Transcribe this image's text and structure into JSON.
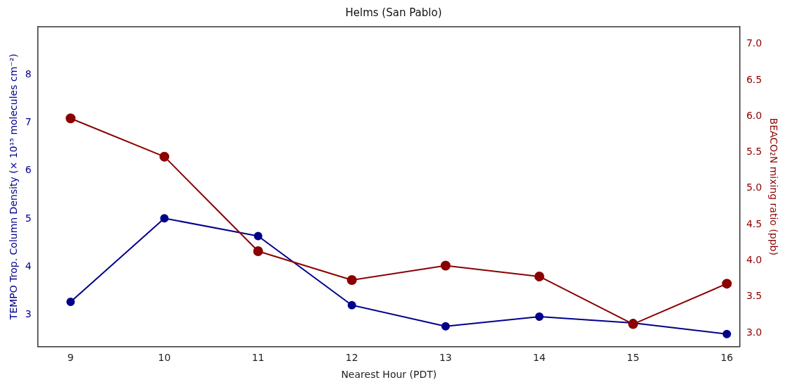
{
  "chart_data": {
    "type": "line",
    "title": "Helms (San Pablo)",
    "xlabel": "Nearest Hour (PDT)",
    "ylabel": "TEMPO Trop. Column Density (× 10¹⁵ molecules cm⁻²)",
    "y2label": "BEACO₂N mixing ratio (ppb)",
    "x": [
      9,
      10,
      11,
      12,
      13,
      14,
      15,
      16
    ],
    "xlim": [
      8.65,
      16.14
    ],
    "xticks": [
      9,
      10,
      11,
      12,
      13,
      14,
      15,
      16
    ],
    "ylim": [
      2.34,
      9.0
    ],
    "yticks": [
      3,
      4,
      5,
      6,
      7,
      8
    ],
    "y2lim": [
      2.81,
      7.24
    ],
    "y2ticks": [
      {
        "value": 3,
        "label": "3.0"
      },
      {
        "value": 3.5,
        "label": "3.5"
      },
      {
        "value": 4,
        "label": "4.0"
      },
      {
        "value": 4.5,
        "label": "4.5"
      },
      {
        "value": 5,
        "label": "5.0"
      },
      {
        "value": 5.5,
        "label": "5.5"
      },
      {
        "value": 6,
        "label": "6.0"
      },
      {
        "value": 6.5,
        "label": "6.5"
      },
      {
        "value": 7,
        "label": "7.0"
      }
    ],
    "marker": "circle",
    "line_style": "solid",
    "series": [
      {
        "color": "#00008b",
        "values": [
          3.27,
          5.01,
          4.64,
          3.2,
          2.76,
          2.96,
          2.83,
          2.6
        ]
      },
      {
        "color": "#8b0000",
        "axis": "y2",
        "values": [
          5.97,
          5.44,
          4.13,
          3.73,
          3.93,
          3.78,
          3.12,
          3.68
        ]
      }
    ]
  }
}
